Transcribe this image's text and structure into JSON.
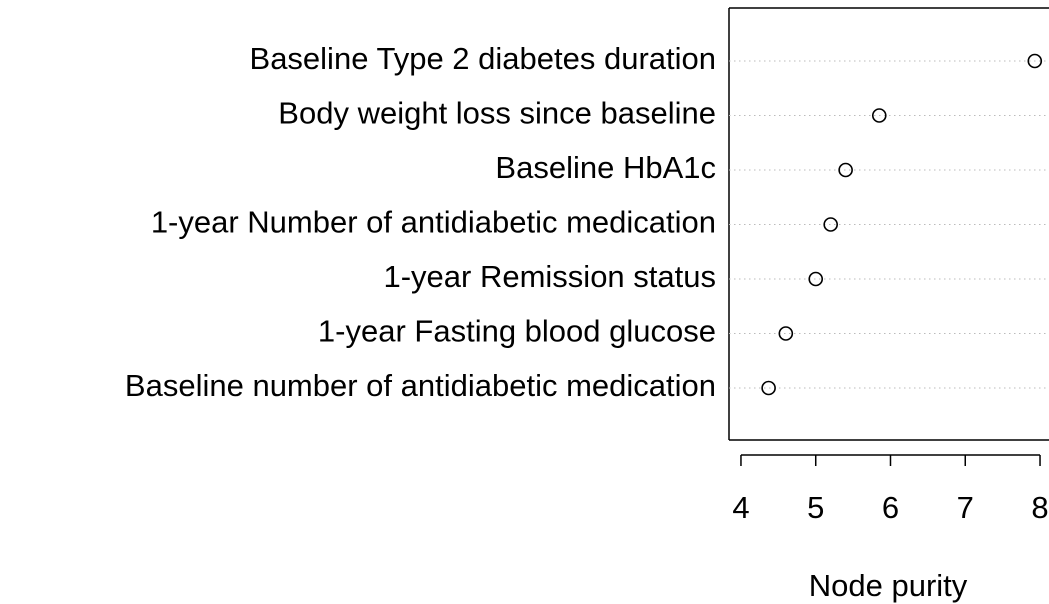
{
  "chart_data": {
    "type": "dot",
    "categories": [
      "Baseline Type 2 diabetes duration",
      "Body weight loss since baseline",
      "Baseline HbA1c",
      "1-year Number of antidiabetic medication",
      "1-year Remission status",
      "1-year Fasting blood glucose",
      "Baseline number of antidiabetic medication"
    ],
    "values": [
      7.93,
      5.85,
      5.4,
      5.2,
      5.0,
      4.6,
      4.37
    ],
    "x_label": "Node purity",
    "xlim": [
      3.84,
      8.12
    ],
    "xticks": [
      4,
      5,
      6,
      7,
      8
    ],
    "grid": true,
    "color": "#000000"
  }
}
